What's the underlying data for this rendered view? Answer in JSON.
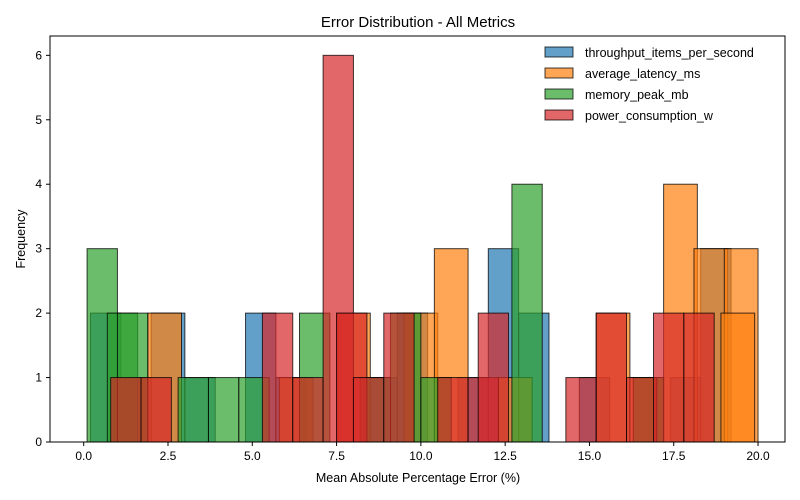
{
  "chart_data": {
    "type": "bar",
    "title": "Error Distribution - All Metrics",
    "xlabel": "Mean Absolute Percentage Error (%)",
    "ylabel": "Frequency",
    "xlim": [
      -1.0,
      20.8
    ],
    "ylim": [
      0,
      6.3
    ],
    "xticks": [
      0.0,
      2.5,
      5.0,
      7.5,
      10.0,
      12.5,
      15.0,
      17.5,
      20.0
    ],
    "xtick_labels": [
      "0.0",
      "2.5",
      "5.0",
      "7.5",
      "10.0",
      "12.5",
      "15.0",
      "17.5",
      "20.0"
    ],
    "yticks": [
      0,
      1,
      2,
      3,
      4,
      5,
      6
    ],
    "ytick_labels": [
      "0",
      "1",
      "2",
      "3",
      "4",
      "5",
      "6"
    ],
    "grid": false,
    "legend_position": "top-right",
    "series": [
      {
        "name": "throughput_items_per_second",
        "color": "#1f77b4",
        "bins": [
          [
            0.2,
            1.1,
            2
          ],
          [
            1.1,
            2.0,
            1
          ],
          [
            2.0,
            3.0,
            2
          ],
          [
            3.0,
            3.9,
            1
          ],
          [
            4.8,
            5.7,
            2
          ],
          [
            5.7,
            6.6,
            1
          ],
          [
            8.4,
            9.3,
            1
          ],
          [
            9.3,
            10.2,
            2
          ],
          [
            11.1,
            12.0,
            1
          ],
          [
            12.0,
            12.9,
            3
          ],
          [
            12.9,
            13.8,
            2
          ],
          [
            14.7,
            15.6,
            1
          ],
          [
            17.4,
            18.3,
            1
          ],
          [
            18.3,
            19.2,
            3
          ]
        ]
      },
      {
        "name": "average_latency_ms",
        "color": "#ff7f0e",
        "bins": [
          [
            0.9,
            1.9,
            1
          ],
          [
            1.9,
            2.9,
            2
          ],
          [
            5.8,
            6.8,
            1
          ],
          [
            7.5,
            8.5,
            2
          ],
          [
            9.5,
            10.5,
            2
          ],
          [
            10.4,
            11.4,
            3
          ],
          [
            12.3,
            13.3,
            1
          ],
          [
            15.2,
            16.2,
            2
          ],
          [
            16.2,
            17.2,
            1
          ],
          [
            17.2,
            18.2,
            4
          ],
          [
            18.1,
            19.1,
            3
          ],
          [
            19.0,
            20.0,
            3
          ],
          [
            18.9,
            19.9,
            2
          ]
        ]
      },
      {
        "name": "memory_peak_mb",
        "color": "#2ca02c",
        "bins": [
          [
            0.1,
            1.0,
            3
          ],
          [
            0.7,
            1.6,
            2
          ],
          [
            1.0,
            1.9,
            2
          ],
          [
            2.8,
            3.7,
            1
          ],
          [
            3.7,
            4.6,
            1
          ],
          [
            4.6,
            5.5,
            1
          ],
          [
            6.4,
            7.3,
            2
          ],
          [
            8.2,
            9.1,
            1
          ],
          [
            9.1,
            10.0,
            2
          ],
          [
            10.0,
            10.9,
            1
          ],
          [
            12.7,
            13.6,
            4
          ],
          [
            16.3,
            17.2,
            1
          ]
        ]
      },
      {
        "name": "power_consumption_w",
        "color": "#d62728",
        "bins": [
          [
            0.8,
            1.7,
            1
          ],
          [
            1.7,
            2.6,
            1
          ],
          [
            5.3,
            6.2,
            2
          ],
          [
            6.2,
            7.1,
            1
          ],
          [
            7.1,
            8.0,
            6
          ],
          [
            7.5,
            8.4,
            2
          ],
          [
            8.0,
            8.9,
            1
          ],
          [
            8.9,
            9.8,
            2
          ],
          [
            10.5,
            11.4,
            1
          ],
          [
            11.4,
            12.3,
            1
          ],
          [
            11.7,
            12.6,
            2
          ],
          [
            14.3,
            15.2,
            1
          ],
          [
            15.2,
            16.1,
            2
          ],
          [
            16.1,
            17.0,
            1
          ],
          [
            16.9,
            17.8,
            2
          ],
          [
            17.8,
            18.7,
            2
          ]
        ]
      }
    ]
  }
}
